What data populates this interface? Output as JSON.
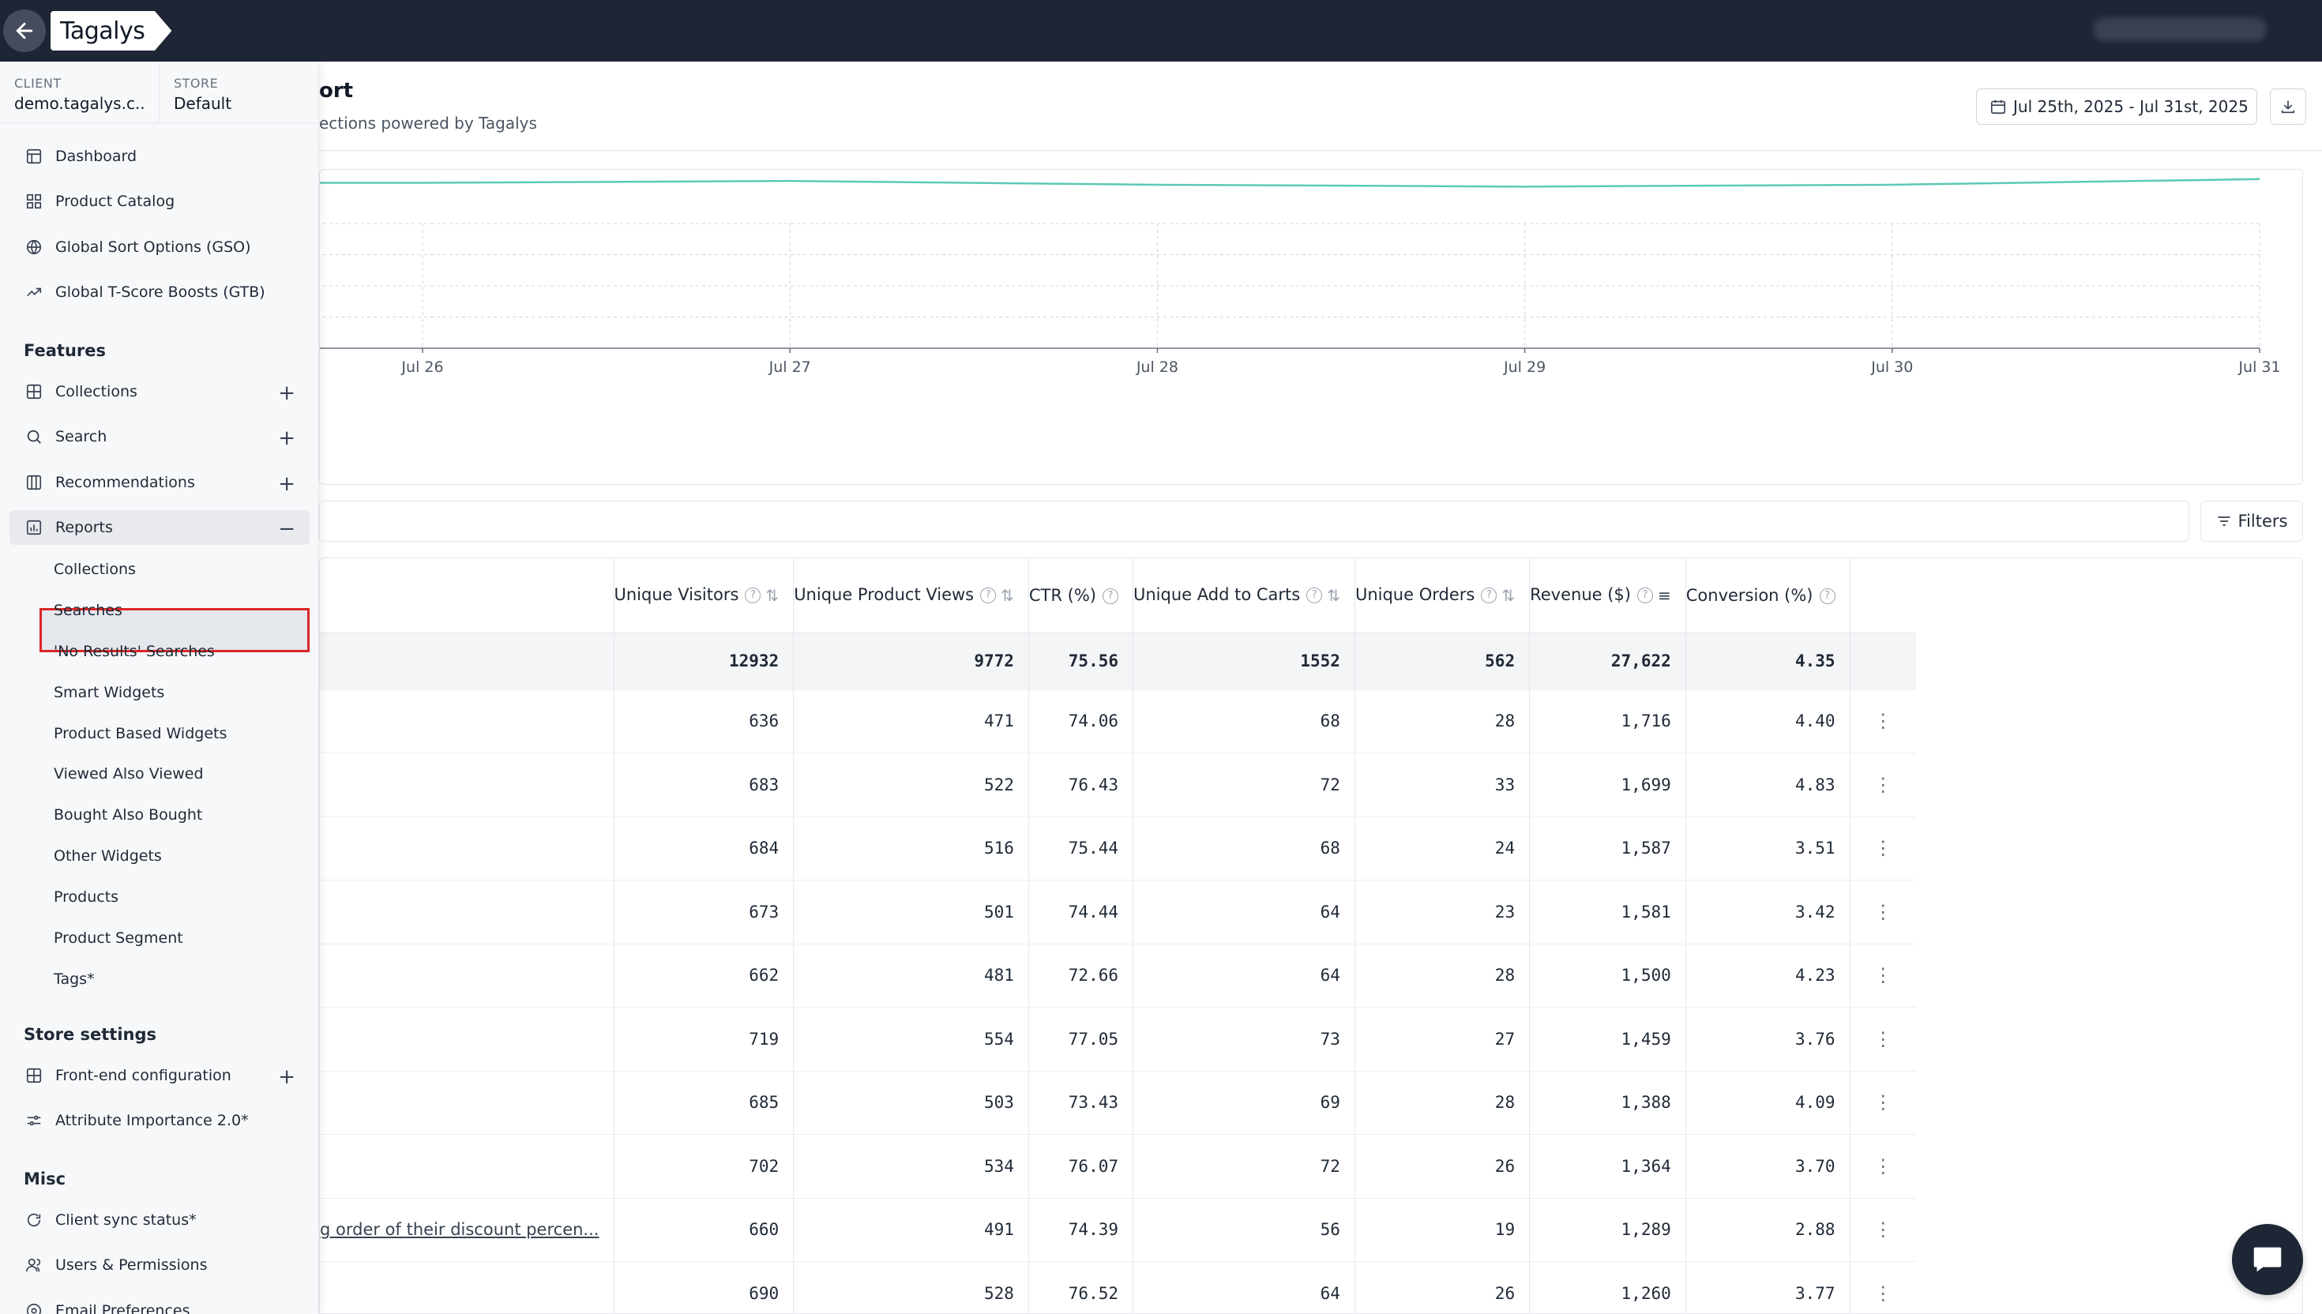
{
  "topbar": {
    "logo": "Tagalys"
  },
  "sidebar": {
    "client_label": "CLIENT",
    "client_value": "demo.tagalys.c...",
    "store_label": "STORE",
    "store_value": "Default",
    "main_items": [
      {
        "label": "Dashboard",
        "icon": "layout-icon"
      },
      {
        "label": "Product Catalog",
        "icon": "grid-icon"
      },
      {
        "label": "Global Sort Options (GSO)",
        "icon": "globe-icon"
      },
      {
        "label": "Global T-Score Boosts (GTB)",
        "icon": "trend-up-icon"
      }
    ],
    "features_title": "Features",
    "features": [
      {
        "label": "Collections",
        "icon": "table-icon"
      },
      {
        "label": "Search",
        "icon": "search-icon"
      },
      {
        "label": "Recommendations",
        "icon": "columns-icon"
      },
      {
        "label": "Reports",
        "icon": "bar-chart-icon"
      }
    ],
    "report_items": [
      "Collections",
      "Searches",
      "'No Results' Searches",
      "Smart Widgets",
      "Product Based Widgets",
      "Viewed Also Viewed",
      "Bought Also Bought",
      "Other Widgets",
      "Products",
      "Product Segment",
      "Tags*"
    ],
    "store_settings_title": "Store settings",
    "store_settings": [
      {
        "label": "Front-end configuration",
        "icon": "table-icon"
      },
      {
        "label": "Attribute Importance 2.0*",
        "icon": "sliders-icon"
      }
    ],
    "misc_title": "Misc",
    "misc": [
      {
        "label": "Client sync status*",
        "icon": "refresh-icon"
      },
      {
        "label": "Users & Permissions",
        "icon": "users-icon"
      },
      {
        "label": "Email Preferences",
        "icon": "mail-icon"
      }
    ]
  },
  "header": {
    "title": "ort",
    "subtitle": "ections powered by Tagalys",
    "date_range": "Jul 25th, 2025 - Jul 31st, 2025"
  },
  "filters_label": "Filters",
  "chart_data": {
    "type": "line",
    "x": [
      "Jul 26",
      "Jul 27",
      "Jul 28",
      "Jul 29",
      "Jul 30",
      "Jul 31"
    ],
    "series": [
      {
        "values": [
          0.88,
          0.89,
          0.87,
          0.86,
          0.87,
          0.9
        ],
        "color": "#5cc9b5"
      }
    ],
    "grid": true
  },
  "table": {
    "headers": [
      "Unique Visitors",
      "Unique Product Views",
      "CTR (%)",
      "Unique Add to Carts",
      "Unique Orders",
      "Revenue ($)",
      "Conversion (%)"
    ],
    "totals": [
      "12932",
      "9772",
      "75.56",
      "1552",
      "562",
      "27,622",
      "4.35"
    ],
    "rows": [
      {
        "name": "",
        "values": [
          "636",
          "471",
          "74.06",
          "68",
          "28",
          "1,716",
          "4.40"
        ]
      },
      {
        "name": "",
        "values": [
          "683",
          "522",
          "76.43",
          "72",
          "33",
          "1,699",
          "4.83"
        ]
      },
      {
        "name": "",
        "values": [
          "684",
          "516",
          "75.44",
          "68",
          "24",
          "1,587",
          "3.51"
        ]
      },
      {
        "name": "",
        "values": [
          "673",
          "501",
          "74.44",
          "64",
          "23",
          "1,581",
          "3.42"
        ]
      },
      {
        "name": "",
        "values": [
          "662",
          "481",
          "72.66",
          "64",
          "28",
          "1,500",
          "4.23"
        ]
      },
      {
        "name": "",
        "values": [
          "719",
          "554",
          "77.05",
          "73",
          "27",
          "1,459",
          "3.76"
        ]
      },
      {
        "name": "",
        "values": [
          "685",
          "503",
          "73.43",
          "69",
          "28",
          "1,388",
          "4.09"
        ]
      },
      {
        "name": "",
        "values": [
          "702",
          "534",
          "76.07",
          "72",
          "26",
          "1,364",
          "3.70"
        ]
      },
      {
        "name": "g order of their discount percen...",
        "values": [
          "660",
          "491",
          "74.39",
          "56",
          "19",
          "1,289",
          "2.88"
        ]
      },
      {
        "name": "",
        "values": [
          "690",
          "528",
          "76.52",
          "64",
          "26",
          "1,260",
          "3.77"
        ]
      }
    ]
  }
}
